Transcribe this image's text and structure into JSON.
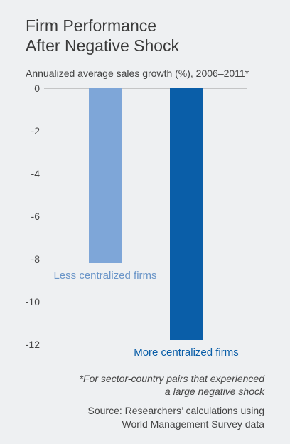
{
  "header": {
    "title_line1": "Firm Performance",
    "title_line2": "After Negative Shock",
    "subtitle": "Annualized average sales growth (%), 2006–2011*"
  },
  "chart_data": {
    "type": "bar",
    "title": "Firm Performance After Negative Shock",
    "ylabel": "Annualized average sales growth (%), 2006–2011*",
    "categories": [
      "Less centralized firms",
      "More centralized firms"
    ],
    "values": [
      -8.2,
      -11.8
    ],
    "colors": [
      "#7ea6d8",
      "#0a5ea8"
    ],
    "label_colors": [
      "#6a95c8",
      "#0a5ea8"
    ],
    "ylim": [
      -12,
      0
    ],
    "yticks": [
      0,
      -2,
      -4,
      -6,
      -8,
      -10,
      -12
    ],
    "grid": false
  },
  "footer": {
    "footnote_line1": "*For sector-country pairs that experienced",
    "footnote_line2": "a large negative shock",
    "source_line1": "Source: Researchers’ calculations using",
    "source_line2": "World Management Survey data"
  }
}
